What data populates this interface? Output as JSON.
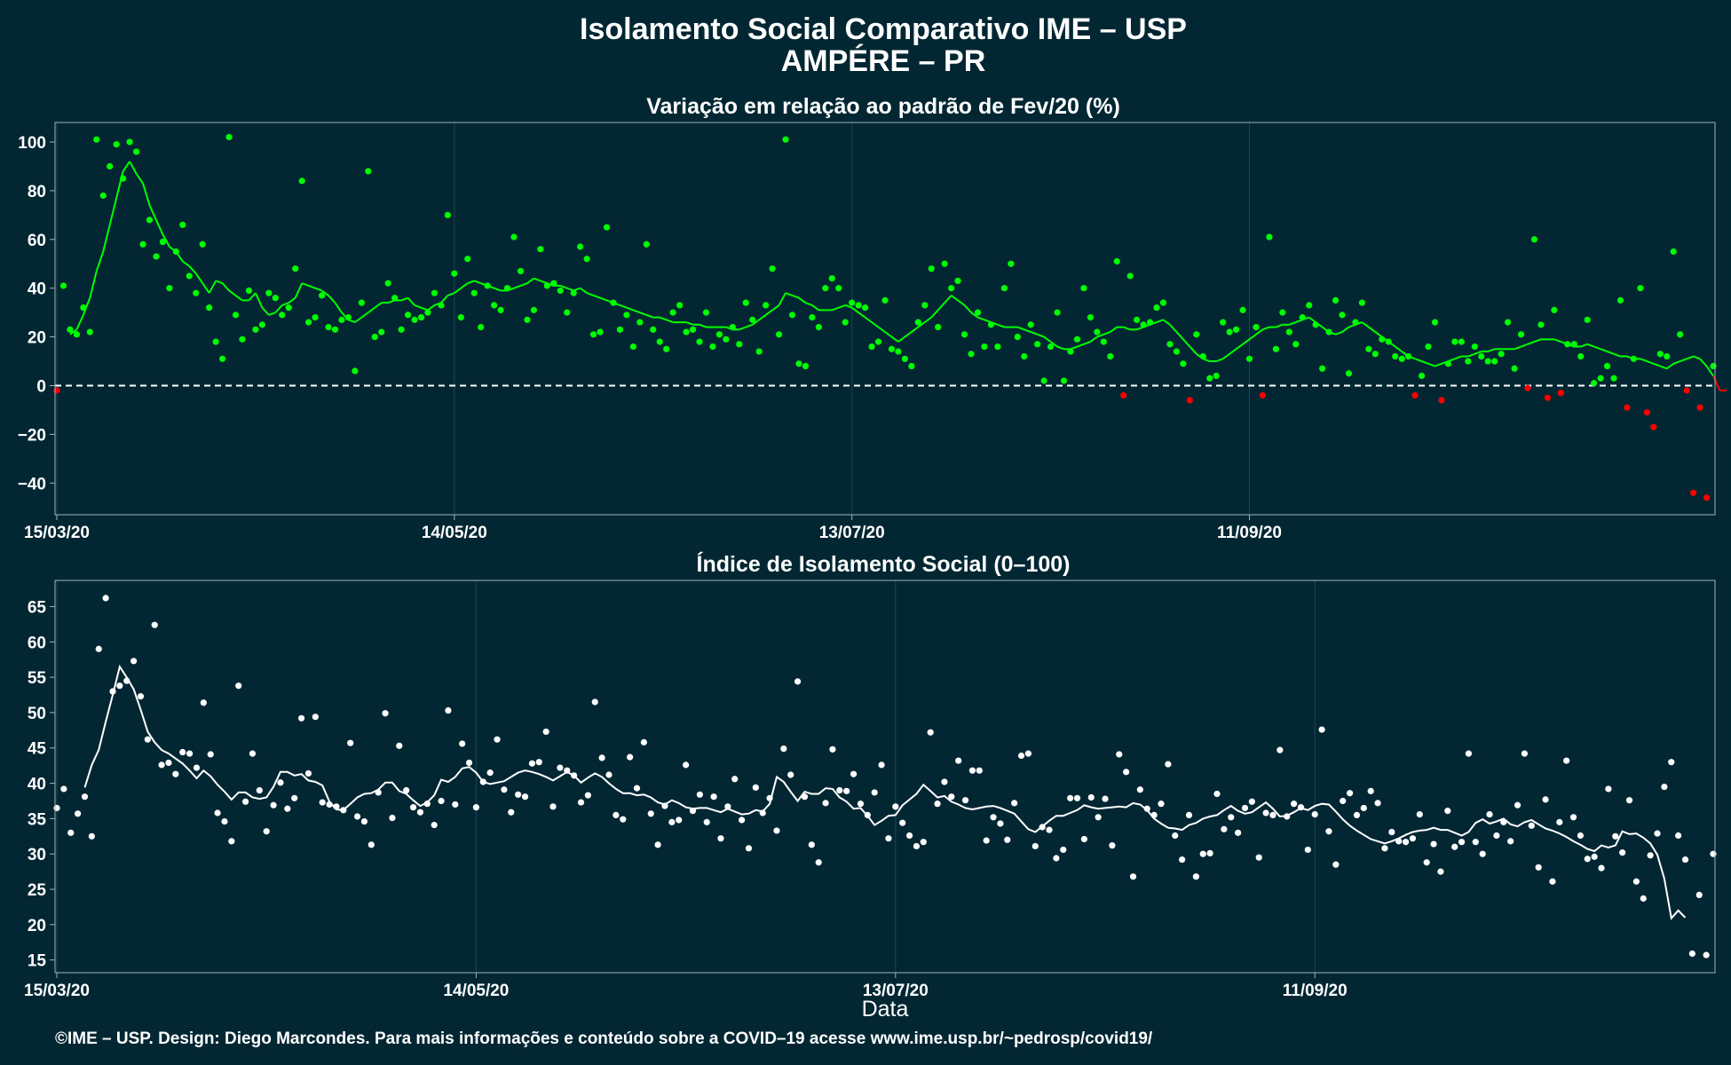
{
  "title_line1": "Isolamento Social Comparativo IME – USP",
  "title_line2": "AMPÉRE – PR",
  "caption": "©IME – USP. Design: Diego Marcondes. Para mais informações e conteúdo sobre a COVID–19 acesse www.ime.usp.br/~pedrosp/covid19/",
  "colors": {
    "background": "#022733",
    "positive": "#00ff00",
    "negative": "#ff0000",
    "index": "#ffffff",
    "grid": "#1e4452",
    "frame": "#9fb3b9"
  },
  "chart_data": [
    {
      "type": "scatter",
      "title": "Variação em relação ao padrão de Fev/20 (%)",
      "xlabel": "",
      "ylabel": "",
      "x_start": "15/03/20",
      "x_ticks": [
        "15/03/20",
        "14/05/20",
        "13/07/20",
        "11/09/20"
      ],
      "ylim": [
        -53,
        108
      ],
      "y_ticks": [
        -40,
        -20,
        0,
        20,
        40,
        60,
        80,
        100
      ],
      "y_tick_labels": [
        "−40",
        "−20",
        "0",
        "20",
        "40",
        "60",
        "80",
        "100"
      ],
      "reference_line": 0,
      "legend": "none",
      "series": [
        {
          "values": [
            -2,
            41,
            23,
            21,
            32,
            22,
            101,
            78,
            90,
            99,
            85,
            100,
            96,
            58,
            68,
            53,
            59,
            40,
            55,
            66,
            45,
            38,
            58,
            32,
            18,
            11,
            102,
            29,
            19,
            39,
            23,
            25,
            38,
            36,
            29,
            32,
            48,
            84,
            26,
            28,
            37,
            24,
            23,
            27,
            28,
            6,
            34,
            88,
            20,
            22,
            42,
            36,
            23,
            29,
            27,
            28,
            30,
            38,
            33,
            70,
            46,
            28,
            52,
            38,
            24,
            41,
            33,
            31,
            40,
            61,
            47,
            27,
            31,
            56,
            41,
            42,
            39,
            30,
            38,
            57,
            52,
            21,
            22,
            65,
            34,
            23,
            29,
            16,
            26,
            58,
            23,
            18,
            15,
            30,
            33,
            22,
            23,
            18,
            30,
            16,
            21,
            19,
            24,
            17,
            34,
            27,
            14,
            33,
            48,
            21,
            101,
            29,
            9,
            8,
            28,
            24,
            40,
            44,
            40,
            26,
            34,
            33,
            32,
            16,
            18,
            35,
            15,
            14,
            11,
            8,
            26,
            33,
            48,
            24,
            50,
            40,
            43,
            21,
            13,
            30,
            16,
            25,
            16,
            40,
            50,
            20,
            12,
            25,
            17,
            2,
            16,
            30,
            2,
            14,
            19,
            40,
            28,
            22,
            18,
            12,
            51,
            -4,
            45,
            27,
            25,
            26,
            32,
            34,
            17,
            14,
            9,
            -6,
            21,
            12,
            3,
            4,
            26,
            22,
            23,
            31,
            11,
            24,
            -4,
            61,
            15,
            30,
            22,
            17,
            28,
            33,
            25,
            7,
            22,
            35,
            29,
            5,
            26,
            34,
            15,
            13,
            19,
            18,
            12,
            11,
            12,
            -4,
            4,
            16,
            26,
            -6,
            9,
            18,
            18,
            10,
            16,
            12,
            10,
            10,
            13,
            26,
            7,
            21,
            -1,
            60,
            25,
            -5,
            31,
            -3,
            17,
            17,
            12,
            27,
            1,
            3,
            8,
            3,
            35,
            -9,
            11,
            40,
            -11,
            -17,
            13,
            12,
            55,
            21,
            -2,
            -44,
            -9,
            -46,
            8
          ]
        },
        {
          "values": [
            null,
            null,
            21,
            23,
            29,
            36,
            47,
            55,
            66,
            77,
            88,
            92,
            87,
            83,
            74,
            68,
            62,
            57,
            55,
            51,
            49,
            46,
            42,
            38,
            43,
            42,
            39,
            37,
            35,
            35,
            38,
            32,
            29,
            30,
            33,
            34,
            36,
            42,
            41,
            40,
            39,
            37,
            34,
            30,
            27,
            26,
            28,
            30,
            32,
            34,
            34,
            35,
            35,
            36,
            33,
            32,
            31,
            33,
            34,
            37,
            38,
            40,
            42,
            43,
            42,
            41,
            40,
            39,
            39,
            40,
            41,
            42,
            44,
            43,
            42,
            41,
            41,
            40,
            39,
            40,
            38,
            37,
            36,
            35,
            34,
            33,
            32,
            31,
            30,
            29,
            28,
            28,
            27,
            26,
            26,
            26,
            25,
            25,
            24,
            24,
            24,
            24,
            23,
            23,
            24,
            25,
            27,
            29,
            31,
            33,
            38,
            37,
            36,
            34,
            33,
            31,
            31,
            31,
            32,
            33,
            32,
            30,
            28,
            26,
            24,
            22,
            20,
            18,
            20,
            22,
            24,
            26,
            28,
            31,
            34,
            37,
            35,
            33,
            30,
            28,
            27,
            26,
            25,
            24,
            24,
            24,
            23,
            22,
            21,
            20,
            18,
            16,
            15,
            15,
            16,
            17,
            18,
            20,
            21,
            22,
            24,
            24,
            23,
            23,
            24,
            25,
            26,
            27,
            25,
            22,
            19,
            16,
            13,
            11,
            10,
            10,
            11,
            13,
            15,
            17,
            19,
            21,
            23,
            24,
            24,
            25,
            25,
            26,
            27,
            28,
            26,
            24,
            22,
            21,
            22,
            24,
            25,
            26,
            24,
            22,
            20,
            18,
            16,
            14,
            12,
            11,
            10,
            9,
            8,
            9,
            10,
            11,
            12,
            12,
            13,
            14,
            14,
            15,
            15,
            15,
            15,
            16,
            17,
            18,
            19,
            19,
            19,
            18,
            17,
            16,
            16,
            17,
            16,
            15,
            14,
            13,
            12,
            12,
            11,
            11,
            10,
            9,
            8,
            7,
            9,
            10,
            11,
            12,
            11,
            8,
            4,
            -2,
            -2
          ]
        }
      ]
    },
    {
      "type": "scatter",
      "title": "Índice de Isolamento Social (0–100)",
      "xlabel": "Data",
      "ylabel": "",
      "x_start": "15/03/20",
      "x_ticks": [
        "15/03/20",
        "14/05/20",
        "13/07/20",
        "11/09/20"
      ],
      "ylim": [
        13.2,
        68.7
      ],
      "y_ticks": [
        15,
        20,
        25,
        30,
        35,
        40,
        45,
        50,
        55,
        60,
        65
      ],
      "legend": "none",
      "series": [
        {
          "values": [
            36.5,
            39.2,
            33,
            35.7,
            38.1,
            32.5,
            59,
            66.2,
            53,
            53.8,
            54.5,
            57.3,
            52.3,
            46.2,
            62.4,
            42.6,
            42.9,
            41.3,
            44.4,
            44.2,
            42.2,
            51.4,
            44.1,
            35.8,
            34.6,
            31.8,
            53.8,
            37.4,
            44.2,
            39.0,
            33.2,
            36.9,
            40.1,
            36.4,
            37.9,
            49.2,
            41.4,
            49.4,
            37.3,
            37.0,
            36.7,
            36.2,
            45.7,
            35.3,
            34.6,
            31.3,
            38.7,
            49.9,
            35.1,
            45.3,
            39.0,
            36.6,
            35.9,
            37.1,
            34.1,
            37.5,
            50.3,
            37.0,
            45.6,
            42.9,
            36.6,
            40.2,
            41.5,
            46.2,
            39.1,
            35.9,
            38.4,
            38.1,
            42.8,
            43.0,
            47.3,
            36.7,
            42.2,
            41.8,
            41.1,
            37.3,
            38.3,
            51.5,
            43.6,
            41.2,
            35.5,
            34.9,
            43.7,
            39.3,
            45.8,
            35.7,
            31.3,
            36.8,
            34.5,
            34.8,
            42.6,
            36.1,
            38.4,
            34.5,
            38.1,
            32.2,
            36.7,
            40.6,
            34.8,
            30.8,
            39.4,
            35.8,
            37.9,
            33.3,
            44.9,
            41.2,
            54.4,
            38.1,
            31.3,
            28.8,
            37.2,
            44.8,
            39.0,
            38.9,
            41.3,
            37.1,
            35.5,
            38.7,
            42.6,
            32.2,
            36.7,
            34.4,
            32.6,
            31.1,
            31.7,
            47.2,
            37.1,
            40.2,
            38.1,
            43.2,
            37.6,
            41.8,
            41.8,
            31.9,
            35.2,
            34.3,
            32.0,
            37.2,
            43.9,
            44.2,
            31.1,
            33.8,
            33.4,
            29.4,
            30.6,
            37.9,
            37.9,
            32.1,
            38.0,
            35.2,
            37.8,
            31.2,
            44.1,
            41.6,
            26.8,
            39.1,
            36.4,
            35.5,
            37.1,
            42.7,
            32.6,
            29.2,
            35.5,
            26.8,
            30.0,
            30.1,
            38.5,
            33.5,
            35.2,
            33.0,
            36.5,
            37.4,
            29.5,
            35.8,
            35.5,
            44.7,
            35.3,
            37.1,
            36.6,
            30.6,
            35.6,
            47.6,
            33.2,
            28.5,
            37.5,
            38.6,
            35.5,
            36.5,
            38.9,
            37.2,
            30.8,
            33.1,
            31.8,
            31.7,
            32.2,
            35.6,
            28.8,
            31.4,
            27.5,
            36.1,
            31.0,
            31.7,
            44.2,
            31.7,
            30.0,
            35.6,
            32.6,
            34.5,
            31.8,
            36.9,
            44.2,
            34.0,
            28.1,
            37.7,
            26.1,
            34.5,
            43.2,
            35.2,
            32.6,
            29.3,
            29.6,
            28.0,
            39.2,
            32.5,
            30.2,
            37.6,
            26.1,
            23.7,
            29.8,
            32.9,
            39.5,
            43.0,
            32.6,
            29.2,
            15.9,
            24.2,
            15.7,
            30.0
          ]
        },
        {
          "values": [
            null,
            null,
            null,
            null,
            39.4,
            42.6,
            44.7,
            48.7,
            52.5,
            56.5,
            55.0,
            53.3,
            50.4,
            47.3,
            45.8,
            44.7,
            44.2,
            43.5,
            42.8,
            41.8,
            40.7,
            41.8,
            41.0,
            39.8,
            38.8,
            37.7,
            38.7,
            38.7,
            38.0,
            37.8,
            38.0,
            39.5,
            41.6,
            41.6,
            41.1,
            41.3,
            40.4,
            40.2,
            39.7,
            37.4,
            36.3,
            36.2,
            37.1,
            38.0,
            38.5,
            38.6,
            39.1,
            40.1,
            40.1,
            38.9,
            38.5,
            37.6,
            36.8,
            37.3,
            38.3,
            40.5,
            40.2,
            40.9,
            42.1,
            42.3,
            41.5,
            40.2,
            39.9,
            40.1,
            40.3,
            40.9,
            41.5,
            41.8,
            41.6,
            41.3,
            40.9,
            40.4,
            41.0,
            41.6,
            41.1,
            40.1,
            40.8,
            41.4,
            40.9,
            40.0,
            39.2,
            38.6,
            38.6,
            38.3,
            38.4,
            38.0,
            37.3,
            37.0,
            37.6,
            37.2,
            36.6,
            36.4,
            36.5,
            36.5,
            36.2,
            35.9,
            36.4,
            36.0,
            35.6,
            35.7,
            36.2,
            36.0,
            37.1,
            40.9,
            40.2,
            38.8,
            37.5,
            38.8,
            38.5,
            38.5,
            39.3,
            39.2,
            38.0,
            37.4,
            36.4,
            36.5,
            35.4,
            34.1,
            34.7,
            35.4,
            35.5,
            36.9,
            37.7,
            38.5,
            39.8,
            38.9,
            38.0,
            38.2,
            37.4,
            37.0,
            36.5,
            36.3,
            36.5,
            36.7,
            36.8,
            36.5,
            36.1,
            35.7,
            34.6,
            33.5,
            33.1,
            33.9,
            34.7,
            35.4,
            35.4,
            35.8,
            36.2,
            36.9,
            36.6,
            36.4,
            36.5,
            36.6,
            36.7,
            36.6,
            37.2,
            37.0,
            36.2,
            35.0,
            34.3,
            33.7,
            33.6,
            33.4,
            34.1,
            34.4,
            35.0,
            35.3,
            35.5,
            36.2,
            36.8,
            36.1,
            35.7,
            35.9,
            36.6,
            37.3,
            36.4,
            35.3,
            35.4,
            35.9,
            36.5,
            36.2,
            36.8,
            37.1,
            37.0,
            36.0,
            34.9,
            34.0,
            33.3,
            32.7,
            32.1,
            31.8,
            31.5,
            31.8,
            32.2,
            32.7,
            33.1,
            33.3,
            33.4,
            33.7,
            33.4,
            33.4,
            33.0,
            32.6,
            33.1,
            34.4,
            34.9,
            34.3,
            34.6,
            35.0,
            34.2,
            33.9,
            34.5,
            34.8,
            34.2,
            33.6,
            33.3,
            32.9,
            32.4,
            31.8,
            31.3,
            30.7,
            30.4,
            31.2,
            30.9,
            31.2,
            33.2,
            32.8,
            32.9,
            32.3,
            31.5,
            29.9,
            26.5,
            20.9,
            22.0,
            21.0
          ]
        }
      ]
    }
  ]
}
